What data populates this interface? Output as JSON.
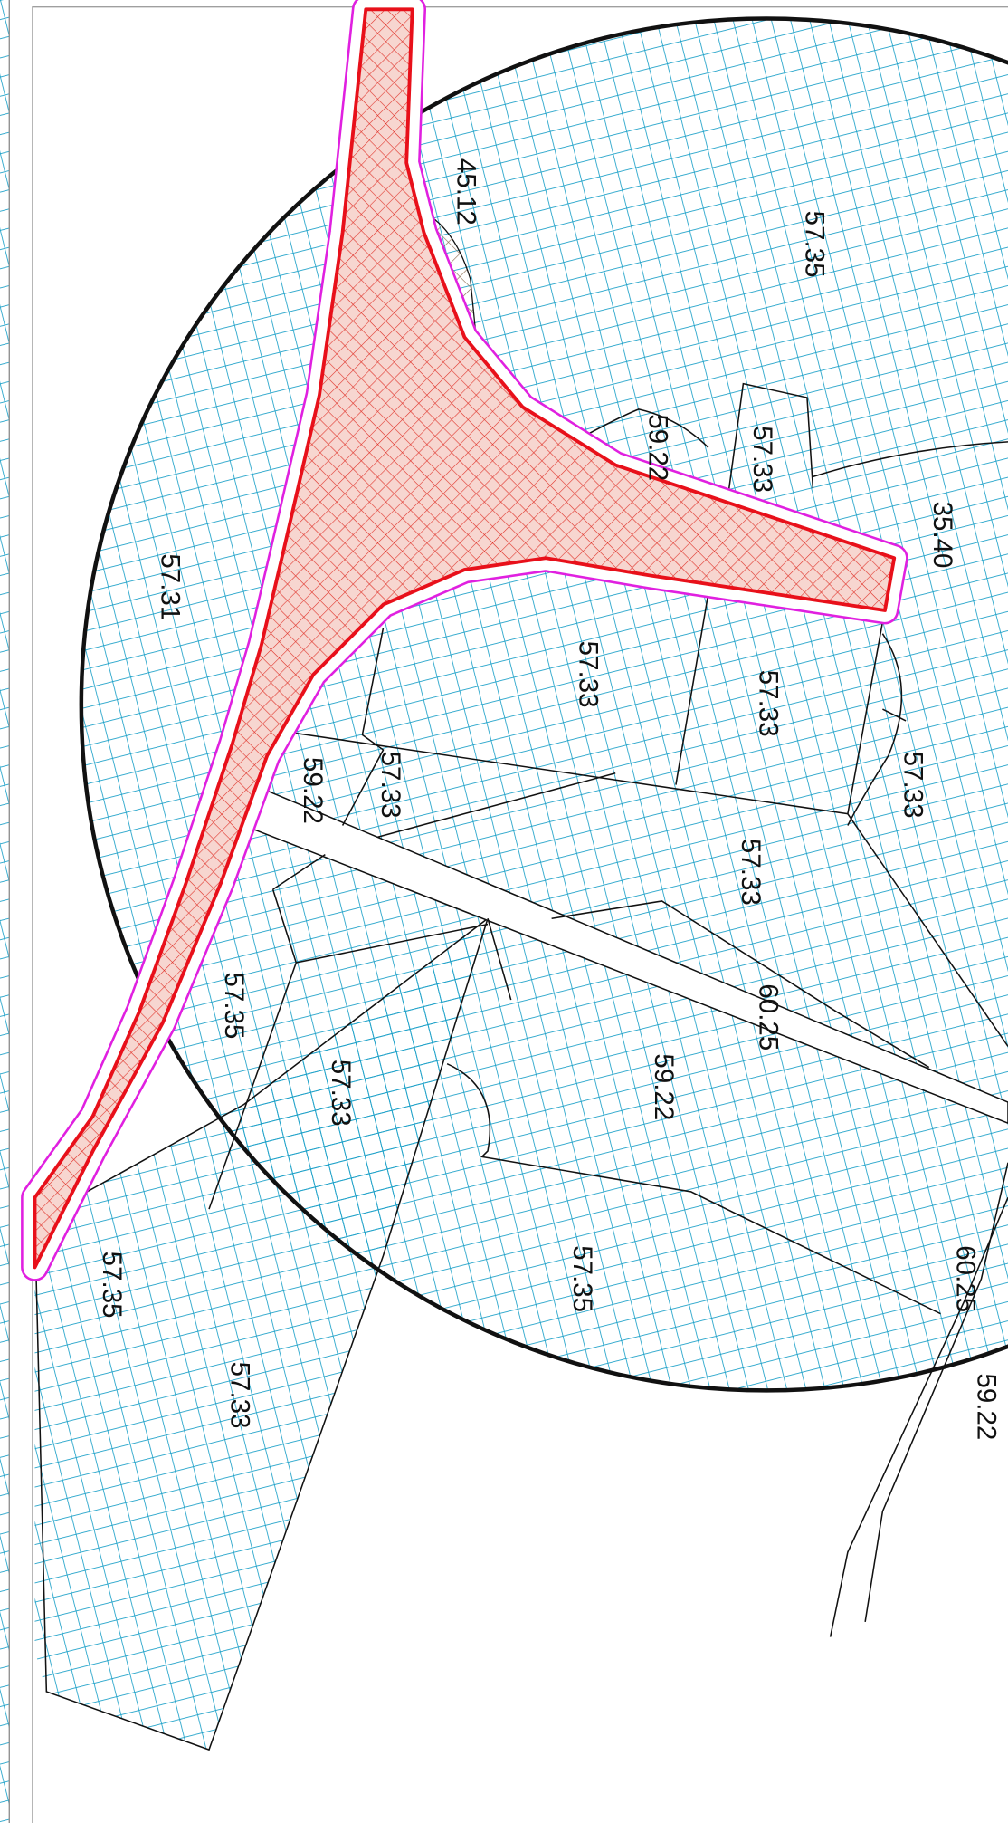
{
  "labels": [
    "45.12",
    "57.35",
    "59.22",
    "57.33",
    "35.40",
    "57.31",
    "57.33",
    "57.33",
    "59.22",
    "57.33",
    "57.33",
    "57.33",
    "60.25",
    "57.35",
    "57.33",
    "59.22",
    "57.35",
    "57.35",
    "60.25",
    "59.22",
    "57.33"
  ]
}
